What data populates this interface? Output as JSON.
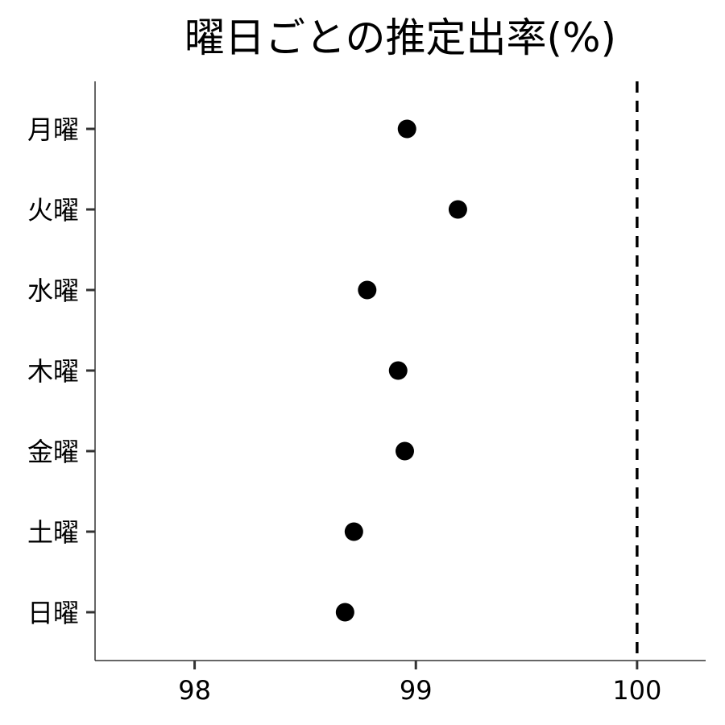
{
  "chart_data": {
    "type": "scatter",
    "title": "曜日ごとの推定出率(%)",
    "categories": [
      "月曜",
      "火曜",
      "水曜",
      "木曜",
      "金曜",
      "土曜",
      "日曜"
    ],
    "values": [
      98.96,
      99.19,
      98.78,
      98.92,
      98.95,
      98.72,
      98.68
    ],
    "xlabel": "",
    "ylabel": "",
    "xlim": [
      97.55,
      100.31
    ],
    "xticks": [
      98,
      99,
      100
    ],
    "xtick_labels": [
      "98",
      "99",
      "100"
    ],
    "reference_line": {
      "x": 100,
      "style": "dashed"
    },
    "grid": false,
    "point_color": "#000000"
  }
}
